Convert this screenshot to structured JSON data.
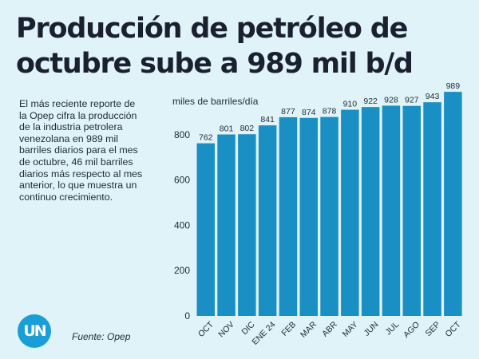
{
  "title_lines": [
    "Producción de petróleo de",
    "octubre sube a 989 mil b/d"
  ],
  "description_lines": [
    "El más reciente reporte de",
    "la Opep cifra la producción",
    "de la industria petrolera",
    "venezolana en 989 mil",
    "barriles diarios para el mes",
    "de octubre, 46 mil barriles",
    "diarios más respecto al mes",
    "anterior, lo que muestra un",
    "continuo crecimiento."
  ],
  "source": "Fuente: Opep",
  "logo_text": "UN",
  "colors": {
    "bar": "#1a8fc4",
    "background": "#dff3f8",
    "logo": "#1a9ed8"
  },
  "chart_data": {
    "type": "bar",
    "title": "",
    "xlabel": "",
    "ylabel": "miles de barriles/día",
    "categories": [
      "OCT",
      "NOV",
      "DIC",
      "ENE 24",
      "FEB",
      "MAR",
      "ABR",
      "MAY",
      "JUN",
      "JUL",
      "AGO",
      "SEP",
      "OCT"
    ],
    "values": [
      762,
      801,
      802,
      841,
      877,
      874,
      878,
      910,
      922,
      928,
      927,
      943,
      989
    ],
    "yticks": [
      0,
      200,
      400,
      600,
      800
    ],
    "ylim": [
      0,
      1000
    ],
    "grid": false,
    "legend": "none",
    "data_labels": true
  }
}
